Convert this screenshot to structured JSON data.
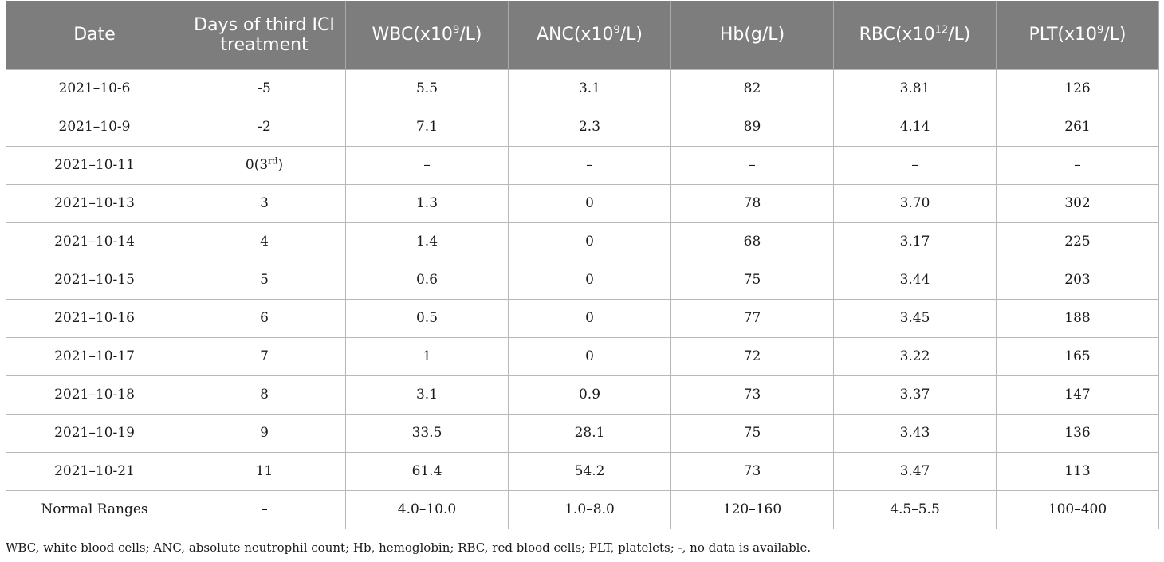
{
  "table": {
    "headers": [
      {
        "text": "Date"
      },
      {
        "text": "Days of third ICI treatment"
      },
      {
        "text": "WBC(x10",
        "sup": "9",
        "tail": "/L)"
      },
      {
        "text": "ANC(x10",
        "sup": "9",
        "tail": "/L)"
      },
      {
        "text": "Hb(g/L)"
      },
      {
        "text": "RBC(x10",
        "sup": "12",
        "tail": "/L)"
      },
      {
        "text": "PLT(x10",
        "sup": "9",
        "tail": "/L)"
      }
    ],
    "rows": [
      [
        "2021–10-6",
        "-5",
        "5.5",
        "3.1",
        "82",
        "3.81",
        "126"
      ],
      [
        "2021–10-9",
        "-2",
        "7.1",
        "2.3",
        "89",
        "4.14",
        "261"
      ],
      [
        {
          "text": "2021–10-11"
        },
        {
          "text": "0(3",
          "sup": "rd",
          "tail": ")"
        },
        "–",
        "–",
        "–",
        "–",
        "–"
      ],
      [
        "2021–10-13",
        "3",
        "1.3",
        "0",
        "78",
        "3.70",
        "302"
      ],
      [
        "2021–10-14",
        "4",
        "1.4",
        "0",
        "68",
        "3.17",
        "225"
      ],
      [
        "2021–10-15",
        "5",
        "0.6",
        "0",
        "75",
        "3.44",
        "203"
      ],
      [
        "2021–10-16",
        "6",
        "0.5",
        "0",
        "77",
        "3.45",
        "188"
      ],
      [
        "2021–10-17",
        "7",
        "1",
        "0",
        "72",
        "3.22",
        "165"
      ],
      [
        "2021–10-18",
        "8",
        "3.1",
        "0.9",
        "73",
        "3.37",
        "147"
      ],
      [
        "2021–10-19",
        "9",
        "33.5",
        "28.1",
        "75",
        "3.43",
        "136"
      ],
      [
        "2021–10-21",
        "11",
        "61.4",
        "54.2",
        "73",
        "3.47",
        "113"
      ],
      [
        "Normal Ranges",
        "–",
        "4.0–10.0",
        "1.0–8.0",
        "120–160",
        "4.5–5.5",
        "100–400"
      ]
    ]
  },
  "footnote": "WBC, white blood cells; ANC, absolute neutrophil count; Hb, hemoglobin; RBC, red blood cells; PLT, platelets; -, no data is available.",
  "colors": {
    "header_bg": "#7d7d7d",
    "header_text": "#ffffff",
    "grid": "#b8b8b8"
  }
}
